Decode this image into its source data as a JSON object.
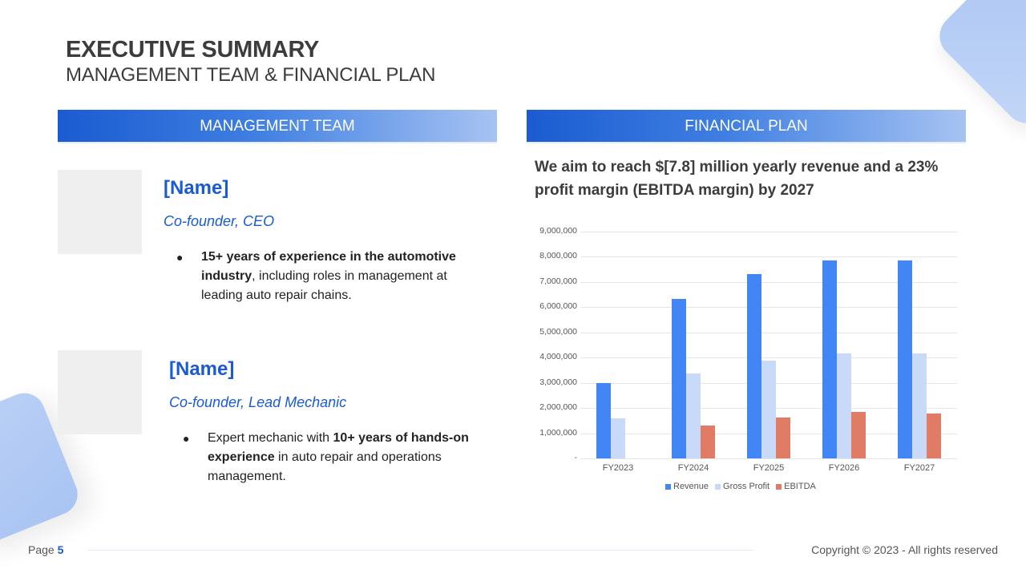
{
  "header": {
    "title": "EXECUTIVE SUMMARY",
    "subtitle": "MANAGEMENT TEAM & FINANCIAL PLAN"
  },
  "management": {
    "section_title": "MANAGEMENT TEAM",
    "people": [
      {
        "name": "[Name]",
        "role": "Co-founder, CEO",
        "bullet_bold": "15+ years of experience in the automotive industry",
        "bullet_rest": ", including roles in management at leading auto repair chains."
      },
      {
        "name": "[Name]",
        "role": "Co-founder, Lead Mechanic",
        "bullet_pre": "Expert mechanic with ",
        "bullet_bold": "10+ years of hands-on experience",
        "bullet_rest": " in auto repair and operations management."
      }
    ]
  },
  "financial": {
    "section_title": "FINANCIAL PLAN",
    "statement": "We aim to reach $[7.8] million yearly revenue and a 23% profit margin (EBITDA margin) by 2027"
  },
  "colors": {
    "accent": "#1a5bd1",
    "revenue": "#4285f4",
    "gross_profit": "#c9daf8",
    "ebitda": "#e07b66"
  },
  "chart_data": {
    "type": "bar",
    "title": "",
    "xlabel": "",
    "ylabel": "",
    "categories": [
      "FY2023",
      "FY2024",
      "FY2025",
      "FY2026",
      "FY2027"
    ],
    "series": [
      {
        "name": "Revenue",
        "color": "#4285f4",
        "values": [
          3000000,
          6340000,
          7320000,
          7860000,
          7860000
        ]
      },
      {
        "name": "Gross Profit",
        "color": "#c9daf8",
        "values": [
          1580000,
          3380000,
          3890000,
          4170000,
          4170000
        ]
      },
      {
        "name": "EBITDA",
        "color": "#e07b66",
        "values": [
          0,
          1310000,
          1620000,
          1840000,
          1790000
        ]
      }
    ],
    "ylim": [
      0,
      9000000
    ],
    "yticks": [
      "9,000,000",
      "8,000,000",
      "7,000,000",
      "6,000,000",
      "5,000,000",
      "4,000,000",
      "3,000,000",
      "2,000,000",
      "1,000,000",
      "-"
    ],
    "grid": true,
    "legend_position": "bottom"
  },
  "footer": {
    "page_label": "Page",
    "page_number": "5",
    "copyright": "Copyright © 2023 - All rights reserved"
  }
}
